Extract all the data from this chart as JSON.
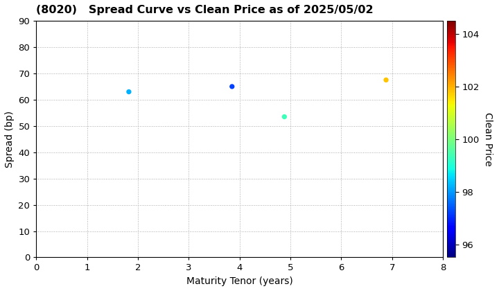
{
  "title": "(8020)   Spread Curve vs Clean Price as of 2025/05/02",
  "xlabel": "Maturity Tenor (years)",
  "ylabel": "Spread (bp)",
  "colorbar_label": "Clean Price",
  "xlim": [
    0,
    8
  ],
  "ylim": [
    0,
    90
  ],
  "xticks": [
    0,
    1,
    2,
    3,
    4,
    5,
    6,
    7,
    8
  ],
  "yticks": [
    0,
    10,
    20,
    30,
    40,
    50,
    60,
    70,
    80,
    90
  ],
  "colorbar_ticks": [
    96,
    98,
    100,
    102,
    104
  ],
  "colorbar_min": 95.5,
  "colorbar_max": 104.5,
  "points": [
    {
      "tenor": 1.82,
      "spread": 63.0,
      "price": 98.2
    },
    {
      "tenor": 3.85,
      "spread": 65.0,
      "price": 97.2
    },
    {
      "tenor": 4.88,
      "spread": 53.5,
      "price": 99.3
    },
    {
      "tenor": 6.88,
      "spread": 67.5,
      "price": 101.8
    }
  ],
  "marker_size": 18,
  "background_color": "#ffffff",
  "grid_color": "#aaaaaa",
  "title_fontsize": 11.5,
  "title_fontweight": "bold",
  "axis_fontsize": 10,
  "tick_fontsize": 9.5
}
